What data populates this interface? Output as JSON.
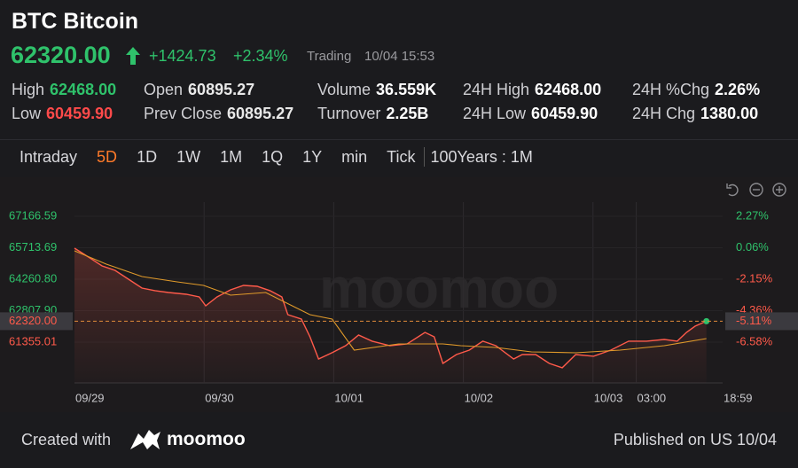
{
  "header": {
    "title": "BTC Bitcoin",
    "price": "62320.00",
    "change": "+1424.73",
    "change_pct": "+2.34%",
    "status": "Trading",
    "time": "10/04 15:53",
    "stats": [
      {
        "label": "High",
        "value": "62468.00",
        "color": "#2fc26b"
      },
      {
        "label": "Low",
        "value": "60459.90",
        "color": "#ff4a4a"
      },
      {
        "label": "Open",
        "value": "60895.27",
        "color": "#e8e8e8"
      },
      {
        "label": "Prev Close",
        "value": "60895.27",
        "color": "#e8e8e8"
      },
      {
        "label": "Volume",
        "value": "36.559K",
        "color": "#ffffff"
      },
      {
        "label": "Turnover",
        "value": "2.25B",
        "color": "#ffffff"
      },
      {
        "label": "24H High",
        "value": "62468.00",
        "color": "#ffffff"
      },
      {
        "label": "24H Low",
        "value": "60459.90",
        "color": "#ffffff"
      },
      {
        "label": "24H %Chg",
        "value": "2.26%",
        "color": "#ffffff"
      },
      {
        "label": "24H Chg",
        "value": "1380.00",
        "color": "#ffffff"
      }
    ]
  },
  "tabs": {
    "items": [
      "Intraday",
      "5D",
      "1D",
      "1W",
      "1M",
      "1Q",
      "1Y",
      "min",
      "Tick"
    ],
    "active": 1,
    "extra": "100Years : 1M"
  },
  "chart_data": {
    "type": "line",
    "watermark": "moomoo",
    "grid": true,
    "xlim": [
      0,
      120
    ],
    "xticks": [
      {
        "value": 0,
        "label": "09/29"
      },
      {
        "value": 24,
        "label": "09/30"
      },
      {
        "value": 48,
        "label": "10/01"
      },
      {
        "value": 72,
        "label": "10/02"
      },
      {
        "value": 96,
        "label": "10/03"
      },
      {
        "value": 104,
        "label": "03:00"
      },
      {
        "value": 120,
        "label": "18:59"
      }
    ],
    "ylim": [
      59470,
      67820
    ],
    "yticks": [
      67166.59,
      65713.69,
      {
        "value": 64260.8,
        "label": "64260.80"
      },
      {
        "value": 62807.9,
        "label": "62807.90"
      },
      61355.01
    ],
    "y2lim": [
      -9.45,
      3.27
    ],
    "y2ticks": [
      {
        "value": 2.27,
        "label": "2.27%"
      },
      {
        "value": 0.06,
        "label": "0.06%"
      },
      {
        "value": -2.15,
        "label": "-2.15%"
      },
      {
        "value": -4.36,
        "label": "-4.36%"
      },
      {
        "value": -6.58,
        "label": "-6.58%"
      }
    ],
    "last_price": {
      "value": 62320,
      "label": "62320.00"
    },
    "last_change": {
      "value": -5.11,
      "label": "-5.11%"
    },
    "series": [
      {
        "color": "#ff5a4a",
        "x": [
          0,
          2.6,
          5.1,
          7.5,
          10,
          12.5,
          14.9,
          17.4,
          20.7,
          23.1,
          24.3,
          26.4,
          28.9,
          31.3,
          33.8,
          36.2,
          38.4,
          39.5,
          42,
          43.6,
          45.2,
          47.7,
          50.2,
          52.6,
          55.1,
          58.4,
          61.6,
          64.9,
          66.6,
          68.2,
          70.7,
          73.1,
          75.6,
          78,
          81.3,
          82.9,
          85.4,
          87.9,
          90.3,
          92.8,
          96.1,
          99.3,
          102.6,
          105.9,
          109.2,
          111.6,
          113.3,
          114.9,
          117
        ],
        "values": [
          65693,
          65284,
          64874,
          64670,
          64260,
          63851,
          63729,
          63647,
          63565,
          63442,
          63033,
          63442,
          63769,
          63974,
          63933,
          63729,
          63442,
          62623,
          62419,
          61600,
          60577,
          60864,
          61191,
          61682,
          61396,
          61191,
          61273,
          61805,
          61600,
          60372,
          60781,
          60986,
          61396,
          61191,
          60577,
          60781,
          60781,
          60372,
          60168,
          60781,
          60700,
          60986,
          61396,
          61396,
          61477,
          61396,
          61805,
          62091,
          62320
        ]
      },
      {
        "color": "#e09a2a",
        "x": [
          0,
          5.9,
          12.5,
          19,
          23.9,
          28.9,
          35.4,
          40.3,
          43.6,
          47.7,
          51.8,
          60,
          68.2,
          71.5,
          78,
          84.6,
          92.8,
          101,
          109.2,
          117
        ],
        "values": [
          65570,
          64956,
          64383,
          64138,
          63974,
          63524,
          63647,
          63033,
          62623,
          62419,
          60986,
          61273,
          61273,
          61191,
          61109,
          60904,
          60863,
          60986,
          61191,
          61518
        ]
      }
    ]
  },
  "footer": {
    "created": "Created with",
    "brand": "moomoo",
    "published": "Published on US 10/04"
  }
}
